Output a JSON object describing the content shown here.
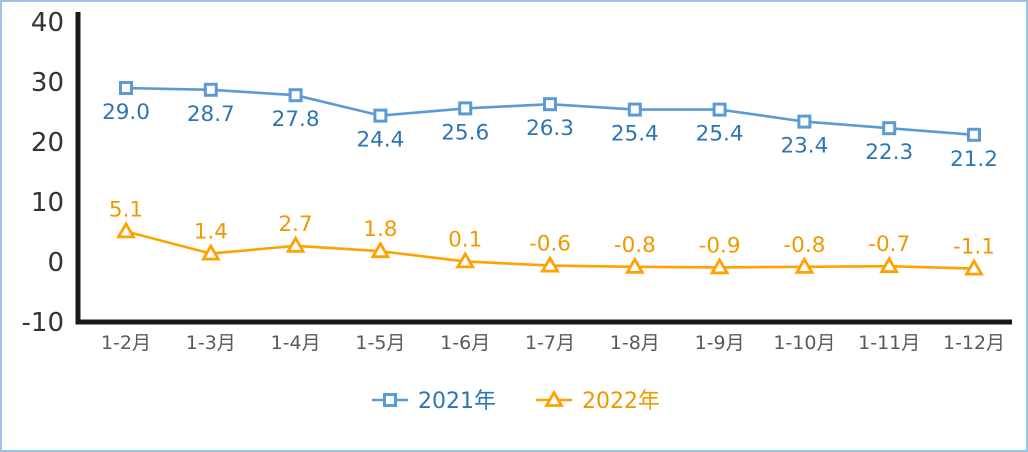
{
  "chart_data": {
    "type": "line",
    "title": "",
    "xlabel": "",
    "ylabel": "",
    "categories": [
      "1-2月",
      "1-3月",
      "1-4月",
      "1-5月",
      "1-6月",
      "1-7月",
      "1-8月",
      "1-9月",
      "1-10月",
      "1-11月",
      "1-12月"
    ],
    "series": [
      {
        "name": "2021年",
        "values": [
          29.0,
          28.7,
          27.8,
          24.4,
          25.6,
          26.3,
          25.4,
          25.4,
          23.4,
          22.3,
          21.2
        ],
        "color": "#5b9bd5",
        "label_color": "#2e75b6",
        "marker": "square"
      },
      {
        "name": "2022年",
        "values": [
          5.1,
          1.4,
          2.7,
          1.8,
          0.1,
          -0.6,
          -0.8,
          -0.9,
          -0.8,
          -0.7,
          -1.1
        ],
        "color": "#ffa200",
        "label_color": "#f09800",
        "marker": "triangle"
      }
    ],
    "ylim": [
      -10,
      40
    ],
    "yticks": [
      40,
      30,
      20,
      10,
      0,
      -10
    ],
    "grid": false,
    "legend_position": "bottom"
  },
  "colors": {
    "axis": "#1a1a1a",
    "ytick_text": "#333333",
    "xtick_text": "#595959",
    "marker_fill": "#ffffff",
    "frame_border": "#9cc3e5",
    "background": "#ffffff"
  }
}
